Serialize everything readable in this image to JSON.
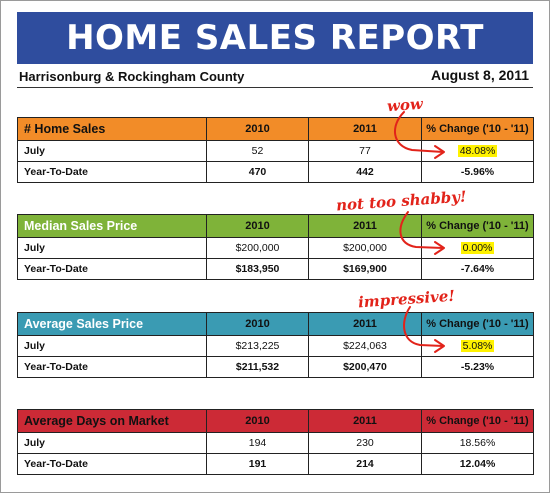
{
  "header": {
    "title": "HOME SALES REPORT",
    "county": "Harrisonburg & Rockingham County",
    "date": "August 8, 2011"
  },
  "tables": [
    {
      "title": "# Home Sales",
      "col_2010": "2010",
      "col_2011": "2011",
      "col_change": "% Change ('10 - '11)",
      "rows": [
        {
          "label": "July",
          "v2010": "52",
          "v2011": "77",
          "change": "48.08%"
        },
        {
          "label": "Year-To-Date",
          "v2010": "470",
          "v2011": "442",
          "change": "-5.96%"
        }
      ]
    },
    {
      "title": "Median Sales Price",
      "col_2010": "2010",
      "col_2011": "2011",
      "col_change": "% Change ('10 - '11)",
      "rows": [
        {
          "label": "July",
          "v2010": "$200,000",
          "v2011": "$200,000",
          "change": "0.00%"
        },
        {
          "label": "Year-To-Date",
          "v2010": "$183,950",
          "v2011": "$169,900",
          "change": "-7.64%"
        }
      ]
    },
    {
      "title": "Average Sales Price",
      "col_2010": "2010",
      "col_2011": "2011",
      "col_change": "% Change ('10 - '11)",
      "rows": [
        {
          "label": "July",
          "v2010": "$213,225",
          "v2011": "$224,063",
          "change": "5.08%"
        },
        {
          "label": "Year-To-Date",
          "v2010": "$211,532",
          "v2011": "$200,470",
          "change": "-5.23%"
        }
      ]
    },
    {
      "title": "Average Days on Market",
      "col_2010": "2010",
      "col_2011": "2011",
      "col_change": "% Change ('10 - '11)",
      "rows": [
        {
          "label": "July",
          "v2010": "194",
          "v2011": "230",
          "change": "18.56%"
        },
        {
          "label": "Year-To-Date",
          "v2010": "191",
          "v2011": "214",
          "change": "12.04%"
        }
      ]
    }
  ],
  "annotations": {
    "wow": "wow",
    "shabby": "not too shabby!",
    "impressive": "impressive!"
  },
  "colors": {
    "banner": "#2f4d9e",
    "home_sales": "#f28c28",
    "median_price": "#7fb339",
    "average_price": "#3a9bb3",
    "days_on_market": "#cc2a36",
    "annotation": "#e2231a",
    "highlight": "#fff200"
  }
}
